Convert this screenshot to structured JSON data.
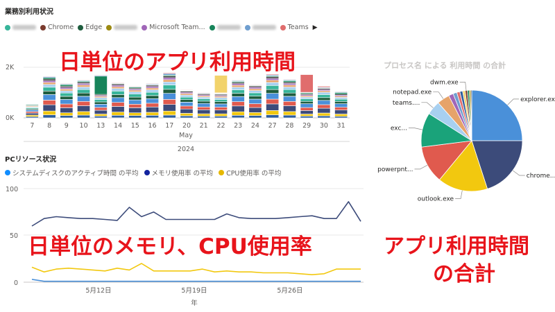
{
  "top_chart": {
    "title": "業務別利用状況",
    "legend": [
      {
        "label": "",
        "color": "#37b59a",
        "redacted": true
      },
      {
        "label": "Chrome",
        "color": "#7a3b2e",
        "redacted": false
      },
      {
        "label": "Edge",
        "color": "#1e5d3e",
        "redacted": false
      },
      {
        "label": "",
        "color": "#9c8a12",
        "redacted": true
      },
      {
        "label": "Microsoft Team...",
        "color": "#a066b8",
        "redacted": false
      },
      {
        "label": "",
        "color": "#17845a",
        "redacted": true
      },
      {
        "label": "",
        "color": "#6f9ecf",
        "redacted": true
      },
      {
        "label": "Teams",
        "color": "#e06d6d",
        "redacted": false
      }
    ],
    "legend_more": "▶",
    "y_ticks": [
      "2K",
      "0K"
    ],
    "x_ticks": [
      "7",
      "8",
      "9",
      "10",
      "13",
      "14",
      "15",
      "16",
      "17",
      "20",
      "21",
      "22",
      "23",
      "24",
      "27",
      "28",
      "29",
      "30",
      "31"
    ],
    "x_group": "May",
    "x_year": "2024",
    "callout": "日単位のアプリ利用時間"
  },
  "pie_chart": {
    "title": "プロセス名 による 利用時間 の合計",
    "labels": [
      "explorer.exe",
      "chrome...",
      "outlook.exe",
      "powerpnt...",
      "exc...",
      "teams....",
      "notepad.exe",
      "dwm.exe"
    ],
    "callout_line1": "アプリ利用時間",
    "callout_line2": "の合計"
  },
  "bottom_chart": {
    "title": "PCリソース状況",
    "legend": [
      {
        "label": "システムディスクのアクティブ時間 の平均",
        "color": "#118dff"
      },
      {
        "label": "メモリ使用率 の平均",
        "color": "#12239e"
      },
      {
        "label": "CPU使用率 の平均",
        "color": "#e6b800"
      }
    ],
    "y_ticks": [
      "100",
      "50",
      "0"
    ],
    "x_ticks": [
      "5月12日",
      "5月19日",
      "5月26日"
    ],
    "x_label": "年",
    "callout": "日単位のメモリ、CPU使用率"
  },
  "chart_data": [
    {
      "type": "bar",
      "stacked": true,
      "title": "業務別利用状況",
      "categories": [
        "7",
        "8",
        "9",
        "10",
        "13",
        "14",
        "15",
        "16",
        "17",
        "20",
        "21",
        "22",
        "23",
        "24",
        "27",
        "28",
        "29",
        "30",
        "31"
      ],
      "ylim": [
        0,
        2400
      ],
      "series": [
        {
          "color": "#2e5e9e",
          "values": [
            50,
            120,
            90,
            110,
            70,
            100,
            90,
            100,
            110,
            80,
            70,
            70,
            100,
            90,
            120,
            110,
            70,
            80,
            60
          ]
        },
        {
          "color": "#f2c80f",
          "values": [
            60,
            150,
            110,
            140,
            80,
            130,
            110,
            120,
            160,
            100,
            90,
            90,
            140,
            120,
            170,
            140,
            80,
            110,
            90
          ]
        },
        {
          "color": "#3c4b7a",
          "values": [
            80,
            250,
            200,
            230,
            150,
            220,
            200,
            210,
            260,
            170,
            160,
            150,
            230,
            200,
            260,
            230,
            140,
            190,
            160
          ]
        },
        {
          "color": "#e05a4e",
          "values": [
            60,
            180,
            150,
            170,
            110,
            160,
            140,
            150,
            200,
            120,
            110,
            110,
            170,
            150,
            190,
            170,
            120,
            140,
            110
          ]
        },
        {
          "color": "#4a90d9",
          "values": [
            70,
            220,
            180,
            200,
            130,
            190,
            170,
            180,
            240,
            150,
            140,
            130,
            200,
            180,
            230,
            200,
            150,
            170,
            140
          ]
        },
        {
          "color": "#1e5d3e",
          "values": [
            40,
            140,
            120,
            130,
            90,
            120,
            110,
            120,
            160,
            100,
            90,
            90,
            130,
            120,
            150,
            130,
            90,
            110,
            90
          ]
        },
        {
          "color": "#37b59a",
          "values": [
            40,
            150,
            130,
            140,
            100,
            140,
            120,
            130,
            170,
            100,
            90,
            90,
            140,
            130,
            160,
            140,
            100,
            120,
            90
          ]
        },
        {
          "color": "#a8d0f0",
          "values": [
            30,
            110,
            90,
            100,
            70,
            100,
            90,
            100,
            120,
            80,
            70,
            70,
            100,
            90,
            120,
            100,
            70,
            90,
            70
          ]
        },
        {
          "color": "#e6a36a",
          "values": [
            30,
            80,
            70,
            80,
            50,
            70,
            60,
            70,
            90,
            60,
            50,
            50,
            80,
            70,
            90,
            80,
            50,
            60,
            50
          ]
        },
        {
          "color": "#a066b8",
          "values": [
            20,
            70,
            60,
            60,
            40,
            60,
            50,
            60,
            80,
            50,
            40,
            40,
            60,
            60,
            70,
            60,
            40,
            50,
            40
          ]
        },
        {
          "color": "#2a2a2a",
          "values": [
            20,
            60,
            50,
            50,
            40,
            50,
            40,
            50,
            60,
            40,
            40,
            40,
            50,
            50,
            60,
            50,
            40,
            40,
            40
          ]
        },
        {
          "color": "#17845a",
          "values": [
            30,
            60,
            60,
            40,
            720,
            20,
            40,
            20,
            40,
            20,
            20,
            20,
            40,
            20,
            40,
            60,
            40,
            20,
            60
          ]
        },
        {
          "color": "#6f9ecf",
          "values": [
            20,
            40,
            30,
            30,
            30,
            20,
            20,
            30,
            60,
            20,
            20,
            20,
            30,
            20,
            40,
            30,
            20,
            30,
            30
          ]
        },
        {
          "color": "#e06d6d",
          "values": [
            10,
            20,
            20,
            20,
            20,
            20,
            20,
            20,
            30,
            20,
            20,
            20,
            20,
            20,
            30,
            20,
            700,
            40,
            20
          ]
        },
        {
          "color": "#f2d36b",
          "values": [
            0,
            0,
            0,
            0,
            0,
            0,
            0,
            0,
            0,
            0,
            0,
            690,
            0,
            0,
            0,
            0,
            0,
            0,
            0
          ]
        }
      ]
    },
    {
      "type": "pie",
      "title": "プロセス名 による 利用時間 の合計",
      "slices": [
        {
          "label": "explorer.exe",
          "value": 25.0,
          "color": "#4a90d9"
        },
        {
          "label": "chrome...",
          "value": 20.0,
          "color": "#3c4b7a"
        },
        {
          "label": "outlook.exe",
          "value": 16.0,
          "color": "#f2c80f"
        },
        {
          "label": "powerpnt...",
          "value": 12.0,
          "color": "#e05a4e"
        },
        {
          "label": "exc...",
          "value": 11.0,
          "color": "#1aa37a"
        },
        {
          "label": "teams....",
          "value": 4.5,
          "color": "#a8d0f0"
        },
        {
          "label": "notepad.exe",
          "value": 4.0,
          "color": "#e6a36a"
        },
        {
          "label": "",
          "value": 1.5,
          "color": "#a066b8"
        },
        {
          "label": "",
          "value": 1.2,
          "color": "#6f9ecf"
        },
        {
          "label": "",
          "value": 1.0,
          "color": "#e06d6d"
        },
        {
          "label": "",
          "value": 0.9,
          "color": "#2e5e9e"
        },
        {
          "label": "",
          "value": 0.8,
          "color": "#f2d36b"
        },
        {
          "label": "dwm.exe",
          "value": 0.7,
          "color": "#7a3b2e"
        },
        {
          "label": "",
          "value": 0.6,
          "color": "#17845a"
        },
        {
          "label": "",
          "value": 0.5,
          "color": "#9c8a12"
        },
        {
          "label": "",
          "value": 0.3,
          "color": "#2a2a2a"
        }
      ]
    },
    {
      "type": "line",
      "title": "PCリソース状況",
      "ylim": [
        0,
        100
      ],
      "series": [
        {
          "name": "メモリ使用率 の平均",
          "color": "#3c4b7a",
          "values": [
            60,
            68,
            70,
            69,
            68,
            68,
            67,
            66,
            80,
            70,
            75,
            67,
            67,
            67,
            67,
            67,
            73,
            69,
            68,
            68,
            68,
            69,
            70,
            71,
            68,
            68,
            86,
            65
          ]
        },
        {
          "name": "CPU使用率 の平均",
          "color": "#f2c80f",
          "values": [
            16,
            11,
            14,
            15,
            14,
            13,
            12,
            15,
            13,
            20,
            12,
            12,
            12,
            12,
            14,
            11,
            12,
            11,
            11,
            10,
            10,
            10,
            9,
            8,
            9,
            14,
            14,
            14
          ]
        },
        {
          "name": "システムディスクのアクティブ時間 の平均",
          "color": "#4a90d9",
          "values": [
            3,
            1,
            1,
            1,
            1,
            1,
            1,
            1,
            1,
            1,
            1,
            1,
            1,
            1,
            1,
            1,
            1,
            1,
            1,
            1,
            1,
            1,
            1,
            1,
            1,
            1,
            1,
            1
          ]
        }
      ]
    }
  ]
}
